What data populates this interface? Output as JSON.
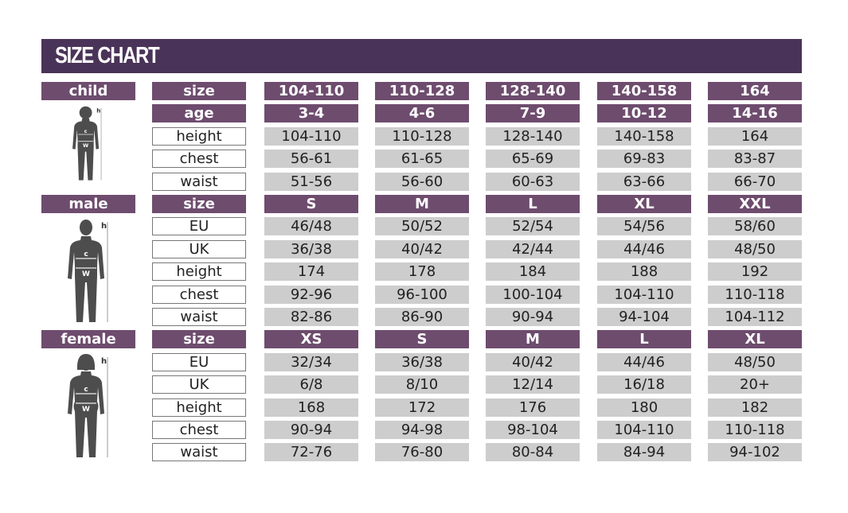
{
  "title": "SIZE CHART",
  "colors": {
    "title_bg": "#4a3358",
    "header_bg": "#6e4c6e",
    "value_bg": "#cdcdcd"
  },
  "sections": [
    {
      "name": "child",
      "figure": "child-silhouette-icon",
      "marks": [
        "h",
        "c",
        "w"
      ],
      "rows": [
        {
          "label": "size",
          "header": true,
          "values": [
            "104-110",
            "110-128",
            "128-140",
            "140-158",
            "164"
          ]
        },
        {
          "label": "age",
          "header": true,
          "values": [
            "3-4",
            "4-6",
            "7-9",
            "10-12",
            "14-16"
          ]
        },
        {
          "label": "height",
          "values": [
            "104-110",
            "110-128",
            "128-140",
            "140-158",
            "164"
          ]
        },
        {
          "label": "chest",
          "values": [
            "56-61",
            "61-65",
            "65-69",
            "69-83",
            "83-87"
          ]
        },
        {
          "label": "waist",
          "values": [
            "51-56",
            "56-60",
            "60-63",
            "63-66",
            "66-70"
          ]
        }
      ]
    },
    {
      "name": "male",
      "figure": "male-silhouette-icon",
      "marks": [
        "h",
        "c",
        "w"
      ],
      "rows": [
        {
          "label": "size",
          "header": true,
          "values": [
            "S",
            "M",
            "L",
            "XL",
            "XXL"
          ]
        },
        {
          "label": "EU",
          "values": [
            "46/48",
            "50/52",
            "52/54",
            "54/56",
            "58/60"
          ]
        },
        {
          "label": "UK",
          "values": [
            "36/38",
            "40/42",
            "42/44",
            "44/46",
            "48/50"
          ]
        },
        {
          "label": "height",
          "values": [
            "174",
            "178",
            "184",
            "188",
            "192"
          ]
        },
        {
          "label": "chest",
          "values": [
            "92-96",
            "96-100",
            "100-104",
            "104-110",
            "110-118"
          ]
        },
        {
          "label": "waist",
          "values": [
            "82-86",
            "86-90",
            "90-94",
            "94-104",
            "104-112"
          ]
        }
      ]
    },
    {
      "name": "female",
      "figure": "female-silhouette-icon",
      "marks": [
        "h",
        "c",
        "w"
      ],
      "rows": [
        {
          "label": "size",
          "header": true,
          "values": [
            "XS",
            "S",
            "M",
            "L",
            "XL"
          ]
        },
        {
          "label": "EU",
          "values": [
            "32/34",
            "36/38",
            "40/42",
            "44/46",
            "48/50"
          ]
        },
        {
          "label": "UK",
          "values": [
            "6/8",
            "8/10",
            "12/14",
            "16/18",
            "20+"
          ]
        },
        {
          "label": "height",
          "values": [
            "168",
            "172",
            "176",
            "180",
            "182"
          ]
        },
        {
          "label": "chest",
          "values": [
            "90-94",
            "94-98",
            "98-104",
            "104-110",
            "110-118"
          ]
        },
        {
          "label": "waist",
          "values": [
            "72-76",
            "76-80",
            "80-84",
            "84-94",
            "94-102"
          ]
        }
      ]
    }
  ]
}
